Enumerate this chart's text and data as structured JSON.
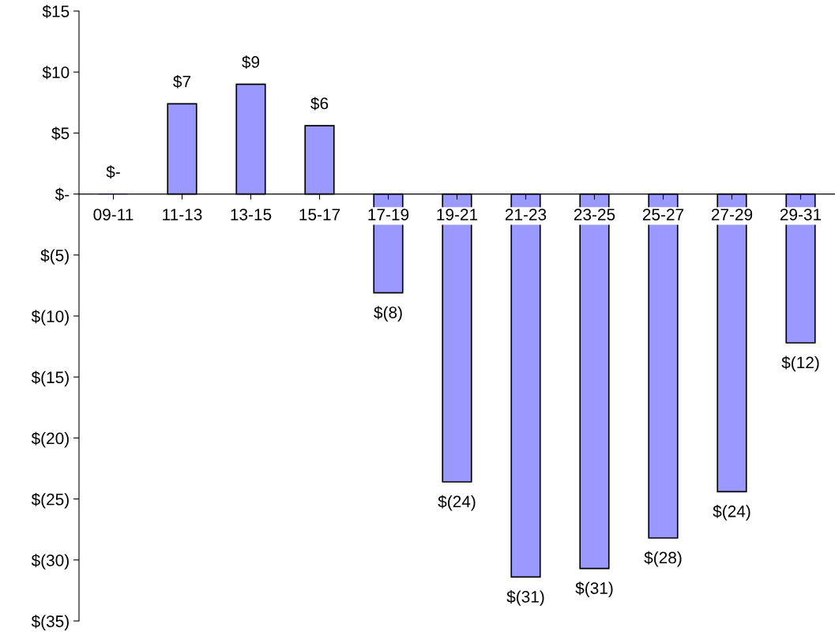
{
  "chart_data": {
    "type": "bar",
    "categories": [
      "09-11",
      "11-13",
      "13-15",
      "15-17",
      "17-19",
      "19-21",
      "21-23",
      "23-25",
      "25-27",
      "27-29",
      "29-31"
    ],
    "values": [
      0,
      7.4,
      9.0,
      5.6,
      -8.1,
      -23.6,
      -31.4,
      -30.7,
      -28.2,
      -24.4,
      -12.2
    ],
    "value_labels": [
      "$-",
      "$7",
      "$9",
      "$6",
      "$(8)",
      "$(24)",
      "$(31)",
      "$(31)",
      "$(28)",
      "$(24)",
      "$(12)"
    ],
    "color": "#9999ff",
    "ylim": [
      -35,
      15
    ],
    "yticks": [
      {
        "value": 15,
        "label": "$15"
      },
      {
        "value": 10,
        "label": "$10"
      },
      {
        "value": 5,
        "label": "$5"
      },
      {
        "value": 0,
        "label": "$-"
      },
      {
        "value": -5,
        "label": "$(5)"
      },
      {
        "value": -10,
        "label": "$(10)"
      },
      {
        "value": -15,
        "label": "$(15)"
      },
      {
        "value": -20,
        "label": "$(20)"
      },
      {
        "value": -25,
        "label": "$(25)"
      },
      {
        "value": -30,
        "label": "$(30)"
      },
      {
        "value": -35,
        "label": "$(35)"
      }
    ],
    "grid": false
  }
}
